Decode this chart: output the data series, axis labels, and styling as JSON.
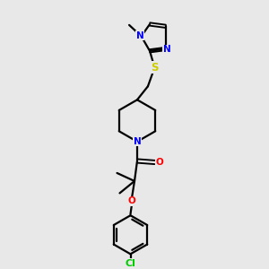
{
  "background_color": "#e8e8e8",
  "bond_color": "#000000",
  "nitrogen_color": "#0000ff",
  "oxygen_color": "#ff0000",
  "sulfur_color": "#cccc00",
  "chlorine_color": "#00cc00",
  "line_width": 1.6,
  "figsize": [
    3.0,
    3.0
  ],
  "dpi": 100,
  "xlim": [
    0,
    10
  ],
  "ylim": [
    0,
    10
  ]
}
